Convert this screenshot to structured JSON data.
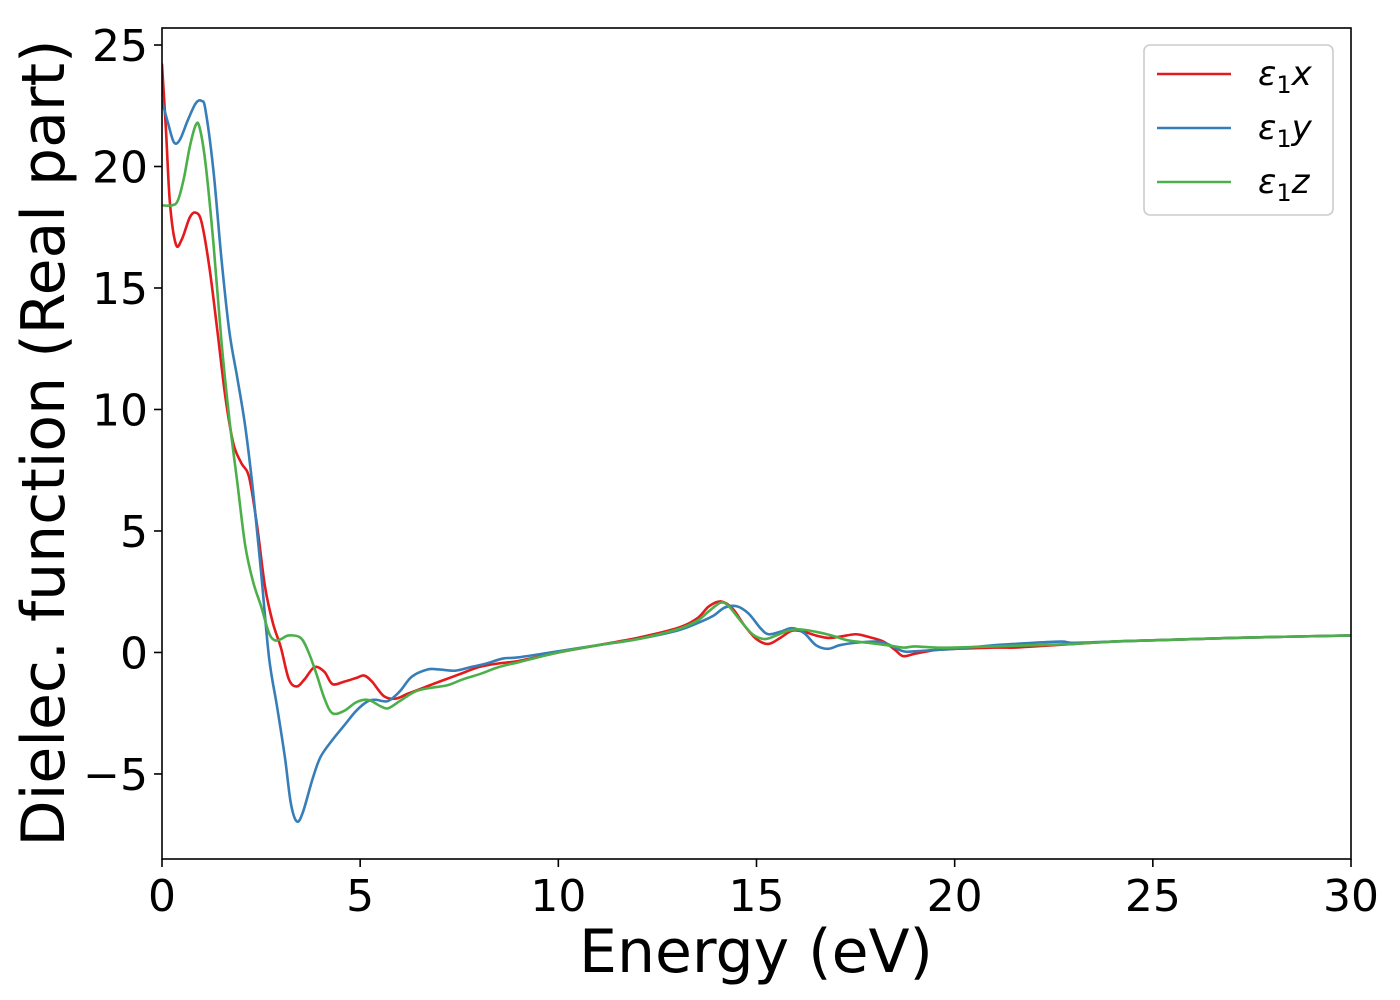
{
  "chart_data": {
    "type": "line",
    "xlabel": "Energy (eV)",
    "ylabel": "Dielec. function (Real part)",
    "xlim": [
      0,
      30
    ],
    "ylim": [
      -8.5,
      25.7
    ],
    "xticks": [
      0,
      5,
      10,
      15,
      20,
      25,
      30
    ],
    "yticks": [
      -5,
      0,
      5,
      10,
      15,
      20,
      25
    ],
    "ytick_labels": [
      "−5",
      "0",
      "5",
      "10",
      "15",
      "20",
      "25"
    ],
    "grid": false,
    "legend_position": "top-right",
    "series": [
      {
        "name": "ε₁x",
        "legend_base": "ε",
        "legend_sub": "1",
        "legend_var": "x",
        "color": "#e41a1c",
        "points": [
          [
            0,
            24.2
          ],
          [
            0.1,
            21.5
          ],
          [
            0.2,
            18.5
          ],
          [
            0.35,
            16.8
          ],
          [
            0.5,
            17.0
          ],
          [
            0.7,
            17.9
          ],
          [
            0.85,
            18.1
          ],
          [
            1.0,
            17.7
          ],
          [
            1.2,
            15.8
          ],
          [
            1.4,
            13.2
          ],
          [
            1.6,
            10.5
          ],
          [
            1.8,
            8.6
          ],
          [
            2.0,
            7.8
          ],
          [
            2.2,
            7.2
          ],
          [
            2.4,
            5.2
          ],
          [
            2.6,
            2.7
          ],
          [
            2.8,
            1.2
          ],
          [
            3.0,
            0.2
          ],
          [
            3.2,
            -1.1
          ],
          [
            3.4,
            -1.4
          ],
          [
            3.6,
            -1.1
          ],
          [
            3.85,
            -0.6
          ],
          [
            4.1,
            -0.8
          ],
          [
            4.3,
            -1.3
          ],
          [
            4.6,
            -1.2
          ],
          [
            4.9,
            -1.05
          ],
          [
            5.1,
            -0.95
          ],
          [
            5.3,
            -1.2
          ],
          [
            5.6,
            -1.8
          ],
          [
            5.9,
            -1.9
          ],
          [
            6.2,
            -1.7
          ],
          [
            6.6,
            -1.45
          ],
          [
            7.0,
            -1.2
          ],
          [
            7.5,
            -0.9
          ],
          [
            8.0,
            -0.6
          ],
          [
            8.5,
            -0.45
          ],
          [
            9.0,
            -0.35
          ],
          [
            10,
            0.0
          ],
          [
            11,
            0.3
          ],
          [
            12,
            0.6
          ],
          [
            13,
            1.0
          ],
          [
            13.5,
            1.4
          ],
          [
            13.8,
            1.9
          ],
          [
            14.1,
            2.1
          ],
          [
            14.4,
            1.8
          ],
          [
            14.7,
            1.1
          ],
          [
            15.0,
            0.55
          ],
          [
            15.3,
            0.35
          ],
          [
            15.6,
            0.6
          ],
          [
            15.9,
            0.9
          ],
          [
            16.2,
            0.85
          ],
          [
            16.5,
            0.7
          ],
          [
            16.8,
            0.6
          ],
          [
            17.1,
            0.65
          ],
          [
            17.5,
            0.75
          ],
          [
            17.8,
            0.65
          ],
          [
            18.2,
            0.45
          ],
          [
            18.5,
            0.1
          ],
          [
            18.7,
            -0.15
          ],
          [
            19.0,
            -0.05
          ],
          [
            19.5,
            0.1
          ],
          [
            20,
            0.15
          ],
          [
            21,
            0.2
          ],
          [
            21.5,
            0.2
          ],
          [
            22,
            0.25
          ],
          [
            23,
            0.35
          ],
          [
            24,
            0.45
          ],
          [
            25,
            0.5
          ],
          [
            27,
            0.6
          ],
          [
            30,
            0.7
          ]
        ]
      },
      {
        "name": "ε₁y",
        "legend_base": "ε",
        "legend_sub": "1",
        "legend_var": "y",
        "color": "#377eb8",
        "points": [
          [
            0,
            22.7
          ],
          [
            0.15,
            21.8
          ],
          [
            0.3,
            21.0
          ],
          [
            0.45,
            21.1
          ],
          [
            0.65,
            21.9
          ],
          [
            0.85,
            22.6
          ],
          [
            1.0,
            22.7
          ],
          [
            1.1,
            22.3
          ],
          [
            1.3,
            19.8
          ],
          [
            1.5,
            16.2
          ],
          [
            1.7,
            13.2
          ],
          [
            1.9,
            11.3
          ],
          [
            2.1,
            9.3
          ],
          [
            2.3,
            6.6
          ],
          [
            2.5,
            3.3
          ],
          [
            2.7,
            -0.2
          ],
          [
            2.9,
            -2.2
          ],
          [
            3.1,
            -4.3
          ],
          [
            3.25,
            -6.2
          ],
          [
            3.4,
            -6.95
          ],
          [
            3.55,
            -6.6
          ],
          [
            3.8,
            -5.2
          ],
          [
            4.0,
            -4.3
          ],
          [
            4.3,
            -3.6
          ],
          [
            4.6,
            -3.0
          ],
          [
            4.9,
            -2.4
          ],
          [
            5.2,
            -2.0
          ],
          [
            5.4,
            -1.95
          ],
          [
            5.7,
            -2.0
          ],
          [
            6.0,
            -1.6
          ],
          [
            6.3,
            -1.0
          ],
          [
            6.7,
            -0.7
          ],
          [
            7.0,
            -0.7
          ],
          [
            7.4,
            -0.75
          ],
          [
            7.8,
            -0.6
          ],
          [
            8.2,
            -0.45
          ],
          [
            8.6,
            -0.25
          ],
          [
            9.0,
            -0.2
          ],
          [
            10,
            0.05
          ],
          [
            11,
            0.3
          ],
          [
            12,
            0.55
          ],
          [
            13,
            0.9
          ],
          [
            13.5,
            1.2
          ],
          [
            13.9,
            1.5
          ],
          [
            14.2,
            1.85
          ],
          [
            14.5,
            1.9
          ],
          [
            14.8,
            1.6
          ],
          [
            15.1,
            1.0
          ],
          [
            15.3,
            0.75
          ],
          [
            15.6,
            0.85
          ],
          [
            15.9,
            1.0
          ],
          [
            16.2,
            0.8
          ],
          [
            16.5,
            0.3
          ],
          [
            16.8,
            0.15
          ],
          [
            17.1,
            0.3
          ],
          [
            17.5,
            0.4
          ],
          [
            18.0,
            0.45
          ],
          [
            18.3,
            0.35
          ],
          [
            18.7,
            0.05
          ],
          [
            19.0,
            0.05
          ],
          [
            19.5,
            0.1
          ],
          [
            20,
            0.15
          ],
          [
            21,
            0.3
          ],
          [
            21.5,
            0.35
          ],
          [
            22,
            0.4
          ],
          [
            22.7,
            0.45
          ],
          [
            23,
            0.4
          ],
          [
            24,
            0.45
          ],
          [
            25,
            0.5
          ],
          [
            27,
            0.6
          ],
          [
            30,
            0.7
          ]
        ]
      },
      {
        "name": "ε₁z",
        "legend_base": "ε",
        "legend_sub": "1",
        "legend_var": "z",
        "color": "#4daf4a",
        "points": [
          [
            0,
            18.4
          ],
          [
            0.25,
            18.4
          ],
          [
            0.4,
            18.6
          ],
          [
            0.55,
            19.5
          ],
          [
            0.7,
            20.8
          ],
          [
            0.85,
            21.7
          ],
          [
            0.95,
            21.6
          ],
          [
            1.1,
            20.1
          ],
          [
            1.3,
            16.8
          ],
          [
            1.5,
            12.8
          ],
          [
            1.7,
            9.6
          ],
          [
            1.9,
            7.0
          ],
          [
            2.1,
            4.4
          ],
          [
            2.3,
            2.9
          ],
          [
            2.5,
            1.9
          ],
          [
            2.7,
            0.8
          ],
          [
            2.85,
            0.5
          ],
          [
            3.0,
            0.55
          ],
          [
            3.2,
            0.7
          ],
          [
            3.5,
            0.6
          ],
          [
            3.7,
            0.0
          ],
          [
            3.9,
            -0.9
          ],
          [
            4.1,
            -1.9
          ],
          [
            4.3,
            -2.5
          ],
          [
            4.6,
            -2.4
          ],
          [
            4.9,
            -2.05
          ],
          [
            5.2,
            -1.95
          ],
          [
            5.5,
            -2.2
          ],
          [
            5.7,
            -2.3
          ],
          [
            6.0,
            -2.0
          ],
          [
            6.4,
            -1.6
          ],
          [
            6.8,
            -1.45
          ],
          [
            7.2,
            -1.35
          ],
          [
            7.6,
            -1.1
          ],
          [
            8.0,
            -0.9
          ],
          [
            8.5,
            -0.6
          ],
          [
            9.0,
            -0.4
          ],
          [
            10,
            0.0
          ],
          [
            11,
            0.3
          ],
          [
            12,
            0.55
          ],
          [
            13,
            0.95
          ],
          [
            13.5,
            1.3
          ],
          [
            13.8,
            1.7
          ],
          [
            14.1,
            2.05
          ],
          [
            14.3,
            1.9
          ],
          [
            14.6,
            1.3
          ],
          [
            14.9,
            0.75
          ],
          [
            15.2,
            0.55
          ],
          [
            15.5,
            0.7
          ],
          [
            15.8,
            0.9
          ],
          [
            16.1,
            0.95
          ],
          [
            16.5,
            0.85
          ],
          [
            16.9,
            0.7
          ],
          [
            17.3,
            0.5
          ],
          [
            17.8,
            0.4
          ],
          [
            18.3,
            0.3
          ],
          [
            18.7,
            0.2
          ],
          [
            19.0,
            0.25
          ],
          [
            19.5,
            0.2
          ],
          [
            20,
            0.2
          ],
          [
            21,
            0.25
          ],
          [
            22,
            0.3
          ],
          [
            23,
            0.35
          ],
          [
            24,
            0.45
          ],
          [
            25,
            0.5
          ],
          [
            27,
            0.6
          ],
          [
            30,
            0.7
          ]
        ]
      }
    ]
  }
}
